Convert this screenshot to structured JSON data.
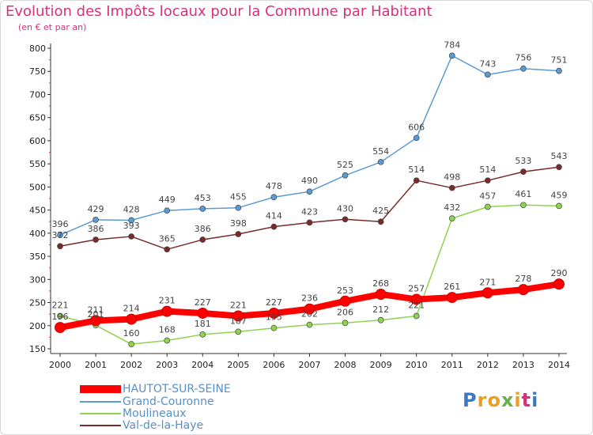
{
  "title": "Evolution des Impôts locaux pour la Commune par Habitant",
  "subtitle": "(en € et par an)",
  "logo": {
    "text": "Proxiti",
    "colors": [
      "#3a79c4",
      "#e8a020",
      "#e8a020",
      "#6ab04c",
      "#e8a020",
      "#d9307c",
      "#3a79c4"
    ]
  },
  "chart_data": {
    "type": "line",
    "title": "Evolution des Impôts locaux pour la Commune par Habitant",
    "subtitle": "(en € et par an)",
    "x": [
      2000,
      2001,
      2002,
      2003,
      2004,
      2005,
      2006,
      2007,
      2008,
      2009,
      2010,
      2011,
      2012,
      2013,
      2014
    ],
    "ylim": [
      150,
      800
    ],
    "yticks": [
      150,
      200,
      250,
      300,
      350,
      400,
      450,
      500,
      550,
      600,
      650,
      700,
      750,
      800
    ],
    "grid": false,
    "legend_position": "bottom-left",
    "series": [
      {
        "name": "HAUTOT-SUR-SEINE",
        "color": "#ff0000",
        "values": [
          196,
          211,
          214,
          231,
          227,
          221,
          227,
          236,
          253,
          268,
          257,
          261,
          271,
          278,
          290
        ]
      },
      {
        "name": "Grand-Couronne",
        "color": "#5a9bd4",
        "values": [
          396,
          429,
          428,
          449,
          453,
          455,
          478,
          490,
          525,
          554,
          606,
          784,
          743,
          756,
          751
        ]
      },
      {
        "name": "Moulineaux",
        "color": "#8fd44f",
        "values": [
          221,
          201,
          160,
          168,
          181,
          187,
          195,
          202,
          206,
          212,
          221,
          432,
          457,
          461,
          459
        ]
      },
      {
        "name": "Val-de-la-Haye",
        "color": "#7a2a2a",
        "values": [
          372,
          386,
          393,
          365,
          386,
          398,
          414,
          423,
          430,
          425,
          514,
          498,
          514,
          533,
          543
        ]
      }
    ]
  }
}
